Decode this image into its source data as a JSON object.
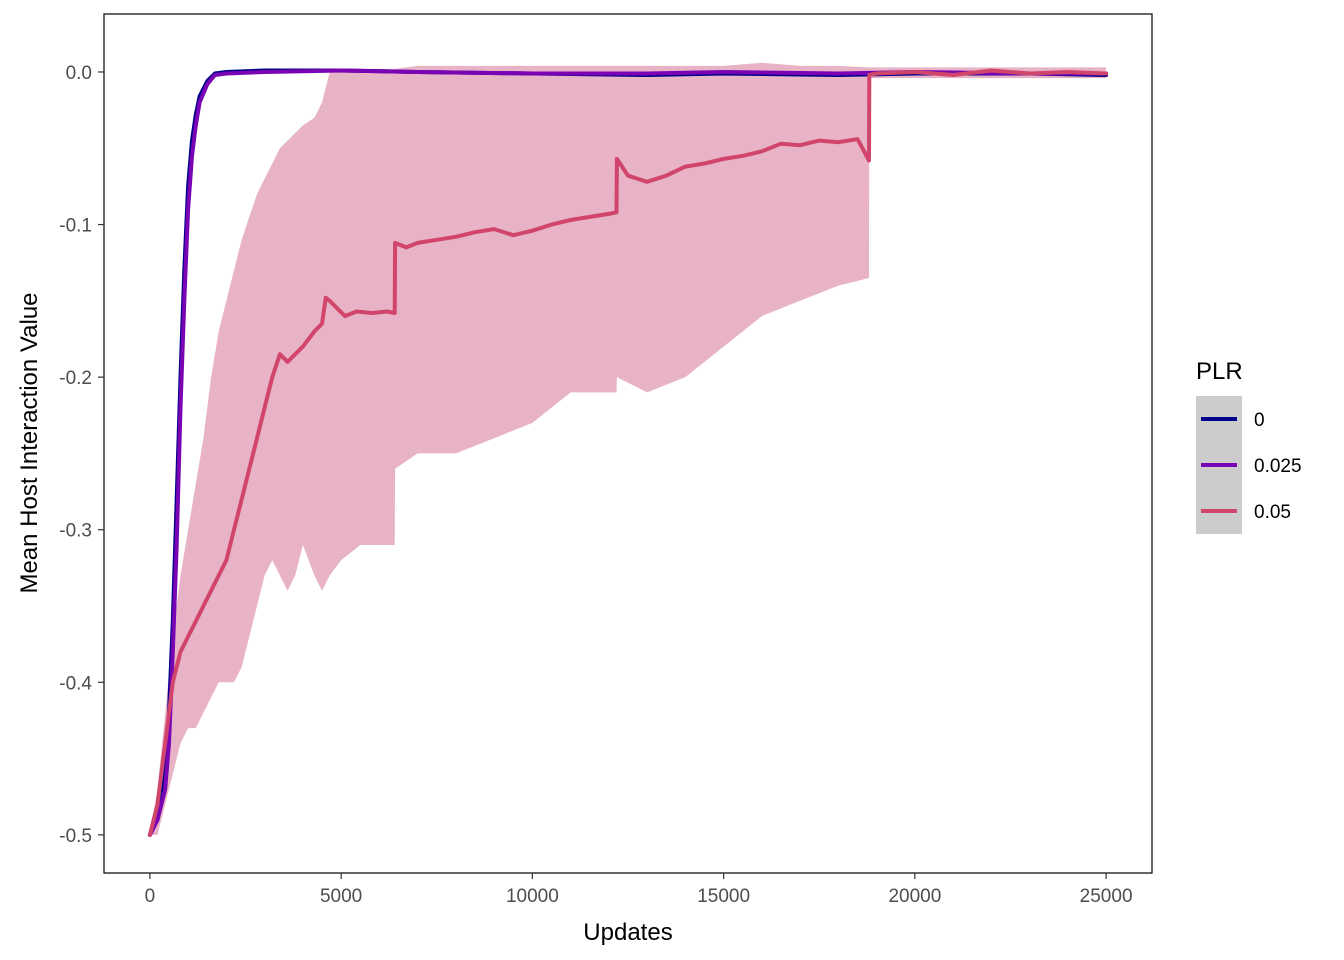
{
  "chart_data": {
    "type": "line",
    "xlabel": "Updates",
    "ylabel": "Mean Host Interaction Value",
    "xlim": [
      -1200,
      26200
    ],
    "ylim": [
      -0.525,
      0.038
    ],
    "xticks": [
      0,
      5000,
      10000,
      15000,
      20000,
      25000
    ],
    "xtick_labels": [
      "0",
      "5000",
      "10000",
      "15000",
      "20000",
      "25000"
    ],
    "yticks": [
      -0.5,
      -0.4,
      -0.3,
      -0.2,
      -0.1,
      0.0
    ],
    "ytick_labels": [
      "-0.5",
      "-0.4",
      "-0.3",
      "-0.2",
      "-0.1",
      "0.0"
    ],
    "grid": false,
    "legend": {
      "title": "PLR",
      "placement": "right",
      "entries": [
        "0",
        "0.025",
        "0.05"
      ]
    },
    "colors": {
      "PLR_0": "#00008b",
      "PLR_0.025": "#7a04b4",
      "PLR_0.05": "#d1456c",
      "ribbon_0.05": "#e8b3c6",
      "legend_key_bg": "#cccccc"
    },
    "series": [
      {
        "name": "0",
        "x": [
          0,
          200,
          400,
          500,
          600,
          700,
          800,
          900,
          1000,
          1100,
          1200,
          1300,
          1500,
          1700,
          2000,
          3000,
          5000,
          7000,
          10000,
          13000,
          15000,
          18000,
          20000,
          23000,
          25000
        ],
        "y": [
          -0.5,
          -0.49,
          -0.46,
          -0.42,
          -0.36,
          -0.28,
          -0.2,
          -0.13,
          -0.075,
          -0.045,
          -0.028,
          -0.016,
          -0.006,
          -0.001,
          0.0,
          0.001,
          0.001,
          0.0,
          -0.001,
          -0.002,
          -0.001,
          -0.002,
          -0.001,
          -0.001,
          -0.002
        ]
      },
      {
        "name": "0.025",
        "x": [
          0,
          200,
          400,
          500,
          600,
          700,
          800,
          900,
          1000,
          1100,
          1200,
          1300,
          1500,
          1700,
          2000,
          3000,
          5000,
          7000,
          10000,
          13000,
          15000,
          18000,
          20000,
          23000,
          25000
        ],
        "y": [
          -0.5,
          -0.49,
          -0.47,
          -0.44,
          -0.38,
          -0.31,
          -0.22,
          -0.15,
          -0.09,
          -0.055,
          -0.035,
          -0.02,
          -0.008,
          -0.002,
          -0.001,
          0.0,
          0.001,
          0.0,
          -0.001,
          -0.001,
          0.0,
          -0.001,
          0.0,
          -0.001,
          -0.001
        ]
      },
      {
        "name": "0.05",
        "x": [
          0,
          200,
          400,
          600,
          800,
          1000,
          1200,
          1400,
          1600,
          1800,
          2000,
          2200,
          2400,
          2600,
          2800,
          3000,
          3200,
          3400,
          3600,
          3800,
          4000,
          4300,
          4500,
          4600,
          4700,
          4900,
          5100,
          5400,
          5800,
          6200,
          6400,
          6410,
          6700,
          7000,
          7500,
          8000,
          8500,
          9000,
          9500,
          10000,
          10500,
          11000,
          11500,
          12000,
          12200,
          12210,
          12500,
          13000,
          13500,
          14000,
          14500,
          15000,
          15500,
          16000,
          16500,
          17000,
          17500,
          18000,
          18500,
          18800,
          18810,
          19000,
          20000,
          21000,
          22000,
          23000,
          24000,
          25000
        ],
        "y": [
          -0.5,
          -0.48,
          -0.44,
          -0.4,
          -0.38,
          -0.37,
          -0.36,
          -0.35,
          -0.34,
          -0.33,
          -0.32,
          -0.3,
          -0.28,
          -0.26,
          -0.24,
          -0.22,
          -0.2,
          -0.185,
          -0.19,
          -0.185,
          -0.18,
          -0.17,
          -0.165,
          -0.148,
          -0.15,
          -0.155,
          -0.16,
          -0.157,
          -0.158,
          -0.157,
          -0.158,
          -0.112,
          -0.115,
          -0.112,
          -0.11,
          -0.108,
          -0.105,
          -0.103,
          -0.107,
          -0.104,
          -0.1,
          -0.097,
          -0.095,
          -0.093,
          -0.092,
          -0.057,
          -0.068,
          -0.072,
          -0.068,
          -0.062,
          -0.06,
          -0.057,
          -0.055,
          -0.052,
          -0.047,
          -0.048,
          -0.045,
          -0.046,
          -0.044,
          -0.058,
          -0.002,
          -0.001,
          0.0,
          -0.002,
          0.001,
          -0.001,
          0.0,
          -0.001
        ]
      }
    ],
    "ribbon": {
      "series": "0.05",
      "x": [
        0,
        200,
        400,
        600,
        800,
        1000,
        1200,
        1400,
        1600,
        1800,
        2000,
        2200,
        2400,
        2600,
        2800,
        3000,
        3200,
        3400,
        3600,
        3800,
        4000,
        4300,
        4500,
        4700,
        5000,
        5500,
        6000,
        6400,
        6410,
        7000,
        8000,
        9000,
        10000,
        11000,
        12000,
        12200,
        12210,
        13000,
        14000,
        15000,
        16000,
        17000,
        18000,
        18800,
        18810,
        19000,
        20000,
        22000,
        25000
      ],
      "upper": [
        -0.5,
        -0.47,
        -0.42,
        -0.37,
        -0.33,
        -0.3,
        -0.27,
        -0.24,
        -0.2,
        -0.17,
        -0.15,
        -0.13,
        -0.11,
        -0.095,
        -0.08,
        -0.07,
        -0.06,
        -0.05,
        -0.045,
        -0.04,
        -0.035,
        -0.03,
        -0.02,
        0.0,
        0.002,
        0.002,
        0.002,
        0.002,
        0.002,
        0.004,
        0.004,
        0.004,
        0.004,
        0.004,
        0.004,
        0.004,
        0.004,
        0.004,
        0.004,
        0.004,
        0.006,
        0.004,
        0.004,
        0.003,
        0.003,
        0.003,
        0.003,
        0.003,
        0.003
      ],
      "lower": [
        -0.5,
        -0.5,
        -0.48,
        -0.46,
        -0.44,
        -0.43,
        -0.43,
        -0.42,
        -0.41,
        -0.4,
        -0.4,
        -0.4,
        -0.39,
        -0.37,
        -0.35,
        -0.33,
        -0.32,
        -0.33,
        -0.34,
        -0.33,
        -0.31,
        -0.33,
        -0.34,
        -0.33,
        -0.32,
        -0.31,
        -0.31,
        -0.31,
        -0.26,
        -0.25,
        -0.25,
        -0.24,
        -0.23,
        -0.21,
        -0.21,
        -0.21,
        -0.2,
        -0.21,
        -0.2,
        -0.18,
        -0.16,
        -0.15,
        -0.14,
        -0.135,
        -0.004,
        -0.004,
        -0.004,
        -0.004,
        -0.004
      ]
    }
  }
}
